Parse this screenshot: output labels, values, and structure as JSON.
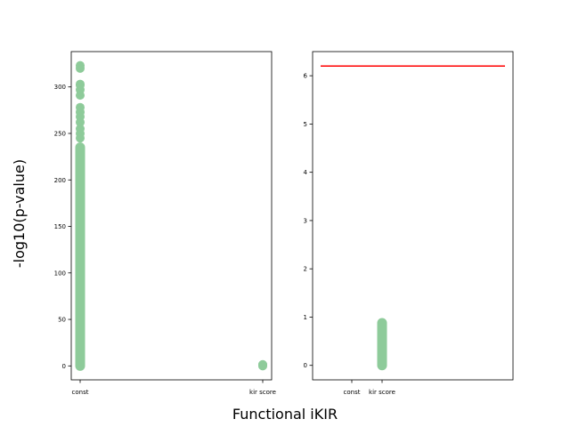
{
  "figure": {
    "xlabel": "Functional iKIR",
    "ylabel": "-log10(p-value)"
  },
  "colors": {
    "points": "#8ecb9a",
    "threshold": "#ff0000"
  },
  "chart_data": [
    {
      "type": "scatter",
      "categories": [
        "const",
        "kir score"
      ],
      "ylim": [
        -15,
        338
      ],
      "yticks": [
        0,
        50,
        100,
        150,
        200,
        250,
        300
      ],
      "ytick_labels": [
        "0",
        "50",
        "100",
        "150",
        "200",
        "250",
        "300"
      ],
      "grid": false,
      "series": [
        {
          "category": "const",
          "range": [
            0,
            235
          ],
          "values": [
            245,
            250,
            255,
            262,
            268,
            273,
            278,
            291,
            297,
            302,
            303,
            320,
            323
          ]
        },
        {
          "category": "kir score",
          "values": [
            0,
            0.5,
            1,
            1.5
          ]
        }
      ]
    },
    {
      "type": "scatter",
      "categories": [
        "const",
        "kir score"
      ],
      "ylim": [
        -0.3,
        6.5
      ],
      "yticks": [
        0,
        1,
        2,
        3,
        4,
        5,
        6
      ],
      "ytick_labels": [
        "0",
        "1",
        "2",
        "3",
        "4",
        "5",
        "6"
      ],
      "grid": false,
      "series": [
        {
          "category": "kir score",
          "range": [
            0,
            0.88
          ]
        }
      ],
      "threshold": 6.2
    }
  ]
}
